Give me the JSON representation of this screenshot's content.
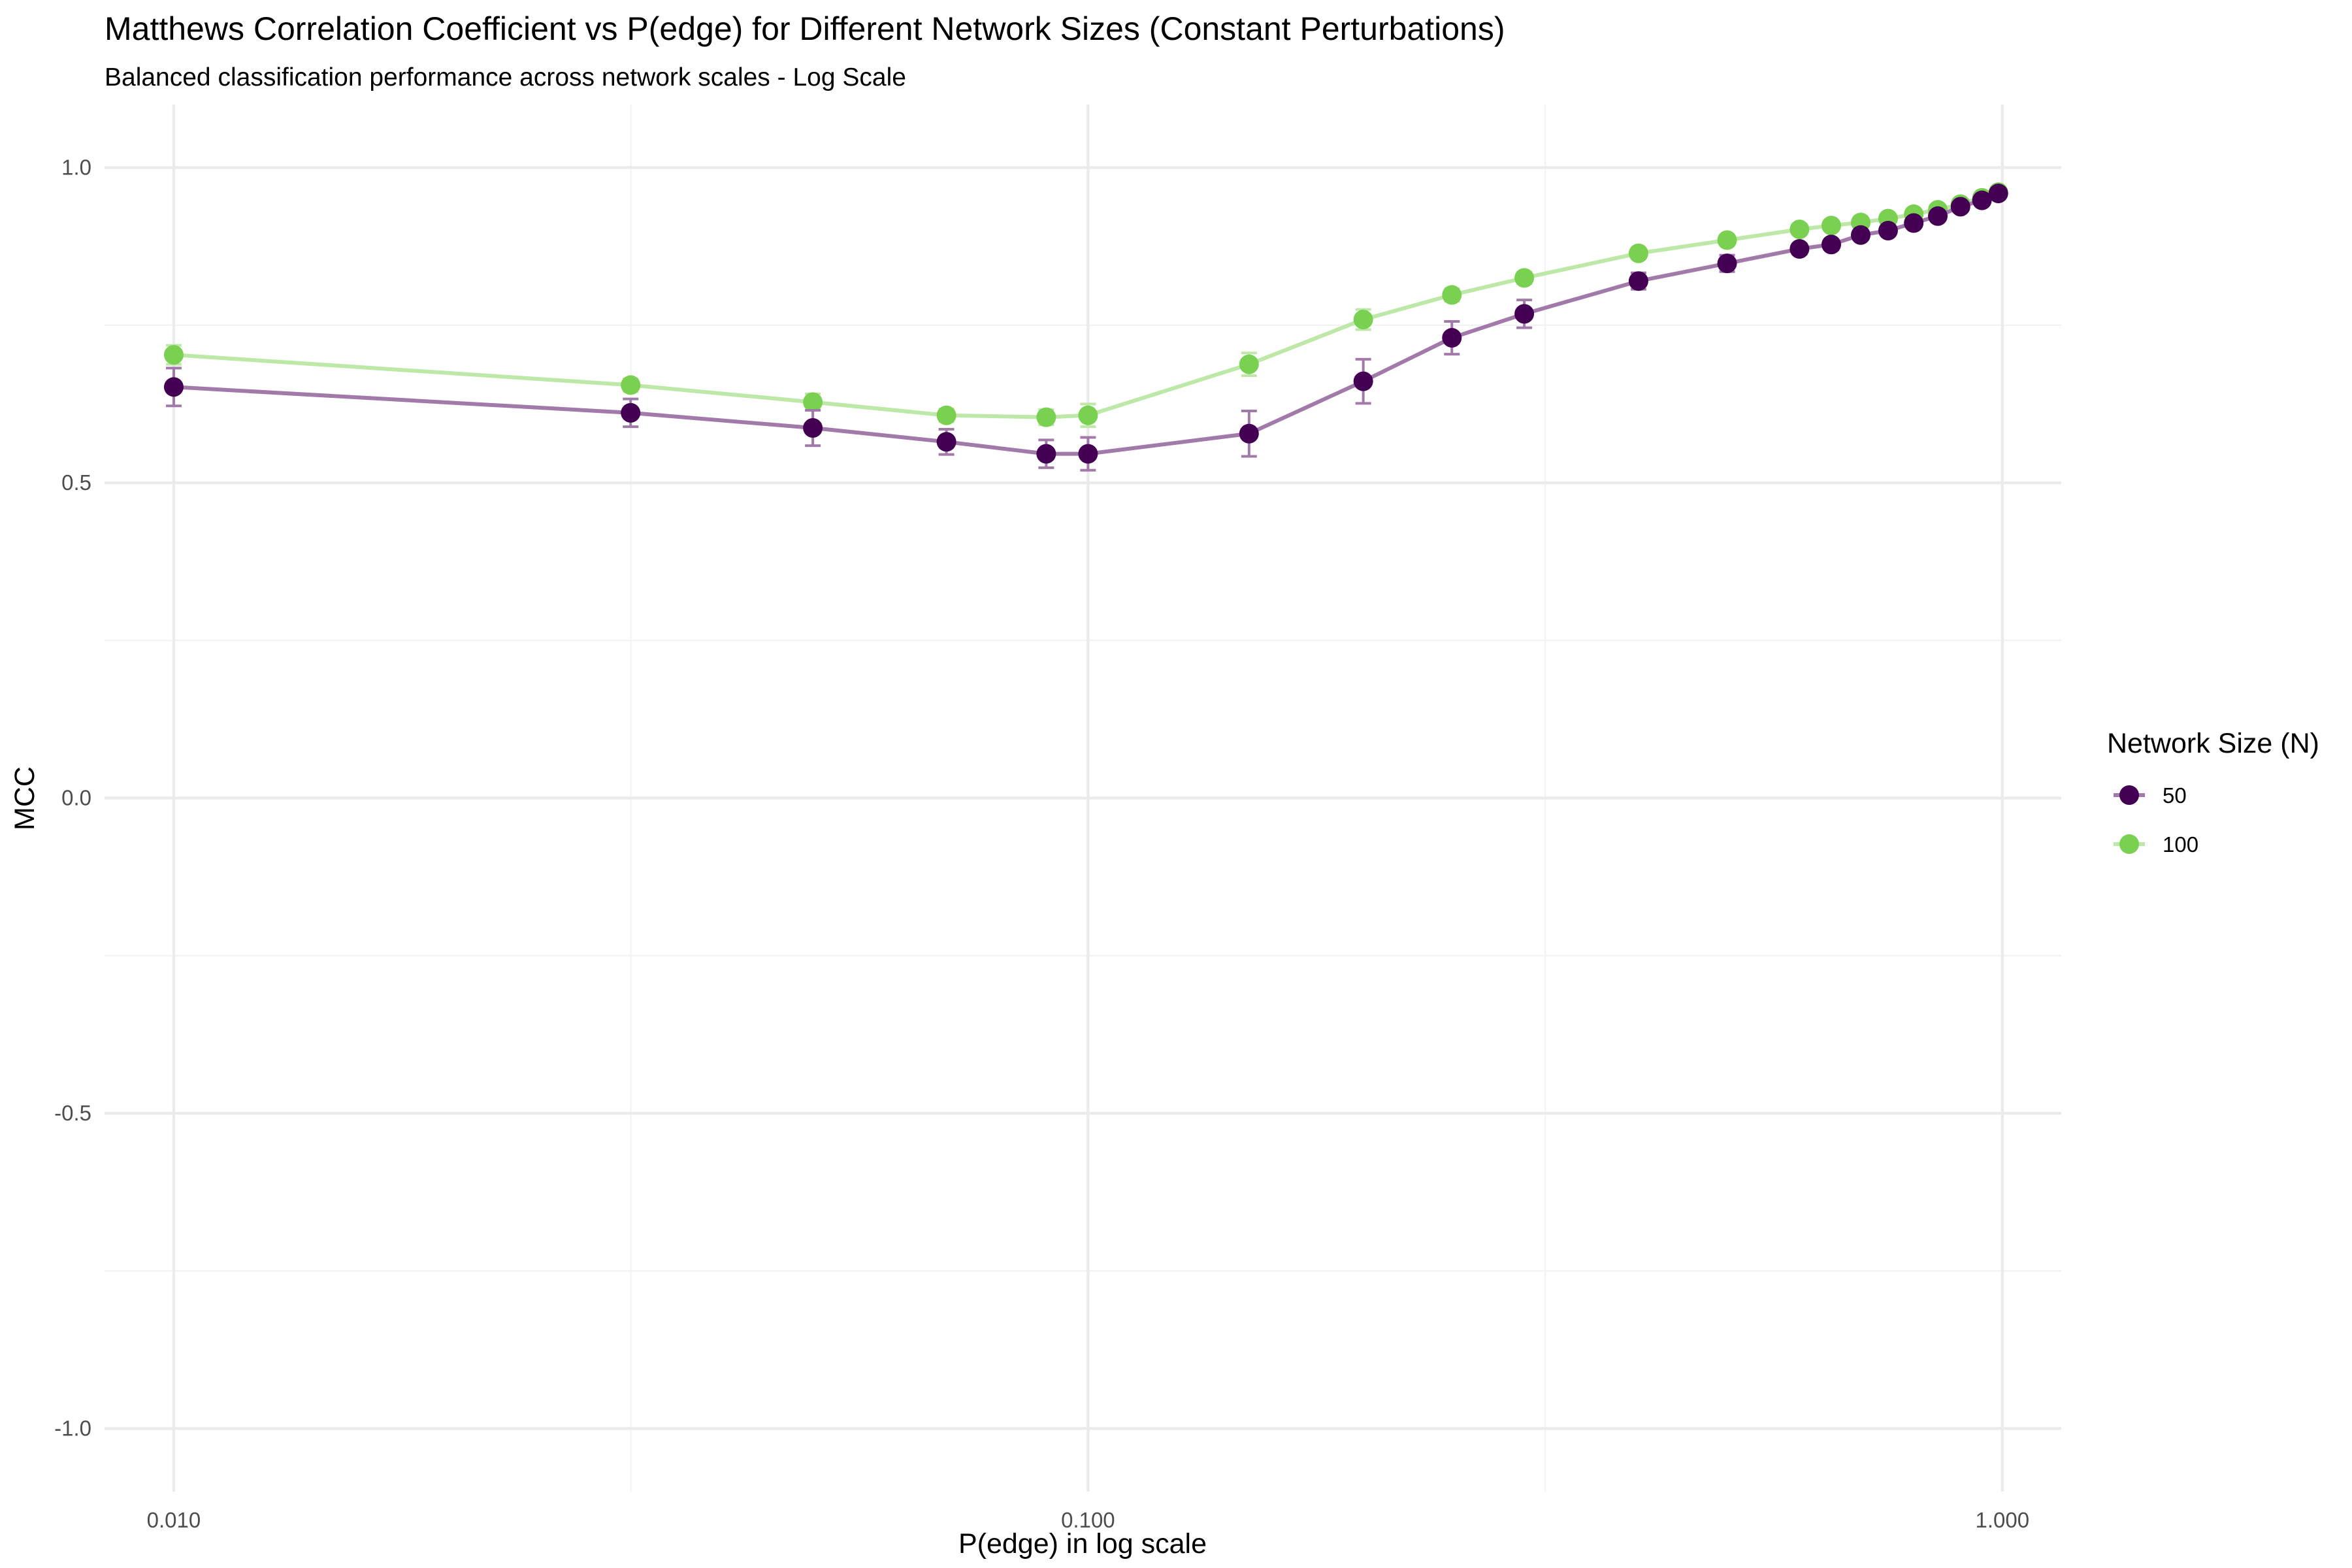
{
  "chart_data": {
    "type": "line",
    "title": "Matthews Correlation Coefficient vs P(edge) for Different Network Sizes (Constant Perturbations)",
    "subtitle": "Balanced classification performance across network scales - Log Scale",
    "xlabel": "P(edge) in log scale",
    "ylabel": "MCC",
    "x_scale": "log10",
    "xlim": [
      0.0084,
      1.16
    ],
    "ylim": [
      -1.1,
      1.1
    ],
    "x_ticks": [
      {
        "value": 0.01,
        "label": "0.010"
      },
      {
        "value": 0.1,
        "label": "0.100"
      },
      {
        "value": 1.0,
        "label": "1.000"
      }
    ],
    "y_ticks": [
      {
        "value": 1.0,
        "label": "1.0"
      },
      {
        "value": 0.5,
        "label": "0.5"
      },
      {
        "value": 0.0,
        "label": "0.0"
      },
      {
        "value": -0.5,
        "label": "-0.5"
      },
      {
        "value": -1.0,
        "label": "-1.0"
      }
    ],
    "grid": true,
    "error_bars": true,
    "legend": {
      "title": "Network Size (N)",
      "position": "right"
    },
    "x": [
      0.01,
      0.0316,
      0.05,
      0.07,
      0.09,
      0.1,
      0.15,
      0.2,
      0.25,
      0.3,
      0.4,
      0.5,
      0.6,
      0.65,
      0.7,
      0.75,
      0.8,
      0.85,
      0.9,
      0.95,
      0.99
    ],
    "series": [
      {
        "name": "50",
        "color": "#440154",
        "line_color": "#a27aaa",
        "values": [
          0.652,
          0.611,
          0.587,
          0.565,
          0.546,
          0.546,
          0.578,
          0.661,
          0.73,
          0.768,
          0.82,
          0.848,
          0.871,
          0.878,
          0.893,
          0.9,
          0.912,
          0.923,
          0.938,
          0.948,
          0.959
        ],
        "errors": [
          0.03,
          0.022,
          0.028,
          0.02,
          0.022,
          0.026,
          0.036,
          0.035,
          0.026,
          0.022,
          0.013,
          0.013,
          0.008,
          0.008,
          0.007,
          0.007,
          0.006,
          0.006,
          0.005,
          0.004,
          0.003
        ]
      },
      {
        "name": "100",
        "color": "#7ad151",
        "line_color": "#bde8a8",
        "values": [
          0.703,
          0.655,
          0.628,
          0.607,
          0.604,
          0.607,
          0.688,
          0.759,
          0.798,
          0.825,
          0.864,
          0.885,
          0.902,
          0.908,
          0.913,
          0.919,
          0.926,
          0.933,
          0.942,
          0.952,
          0.961
        ],
        "errors": [
          0.015,
          0.01,
          0.013,
          0.01,
          0.012,
          0.018,
          0.018,
          0.016,
          0.01,
          0.009,
          0.008,
          0.007,
          0.005,
          0.005,
          0.005,
          0.005,
          0.004,
          0.004,
          0.004,
          0.003,
          0.003
        ]
      }
    ]
  }
}
